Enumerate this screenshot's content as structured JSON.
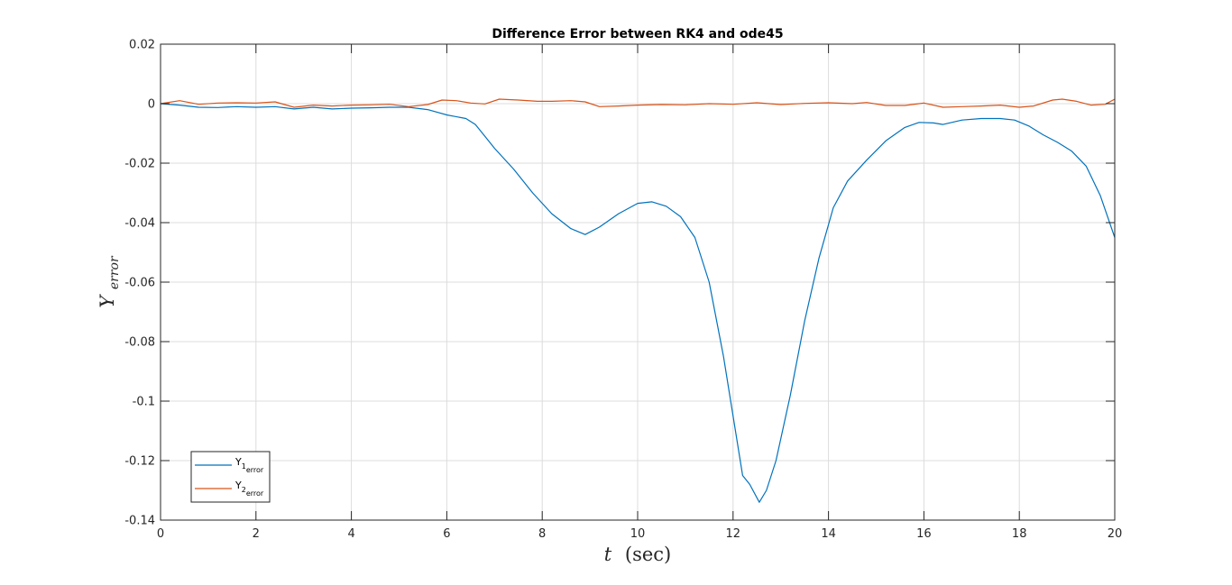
{
  "chart_data": {
    "type": "line",
    "title": "Difference Error between RK4 and ode45",
    "xlabel_var": "t",
    "xlabel_unit": "(sec)",
    "ylabel_base": "Y",
    "ylabel_sub": "error",
    "xlim": [
      0,
      20
    ],
    "ylim": [
      -0.14,
      0.02
    ],
    "xticks": [
      0,
      2,
      4,
      6,
      8,
      10,
      12,
      14,
      16,
      18,
      20
    ],
    "yticks": [
      0.02,
      0,
      -0.02,
      -0.04,
      -0.06,
      -0.08,
      -0.1,
      -0.12,
      -0.14
    ],
    "xtick_labels": [
      "0",
      "2",
      "4",
      "6",
      "8",
      "10",
      "12",
      "14",
      "16",
      "18",
      "20"
    ],
    "ytick_labels": [
      "0.02",
      "0",
      "-0.02",
      "-0.04",
      "-0.06",
      "-0.08",
      "-0.1",
      "-0.12",
      "-0.14"
    ],
    "grid": true,
    "legend_position": "bottom-left",
    "series": [
      {
        "name": "Y1 error",
        "legend_base": "Y",
        "legend_index": "1",
        "legend_sub": "error",
        "color": "#0072BD",
        "x": [
          0,
          0.4,
          0.8,
          1.2,
          1.6,
          2.0,
          2.4,
          2.8,
          3.2,
          3.6,
          4.0,
          4.4,
          4.8,
          5.2,
          5.6,
          6.0,
          6.4,
          6.6,
          6.8,
          7.0,
          7.4,
          7.8,
          8.2,
          8.6,
          8.9,
          9.2,
          9.6,
          10.0,
          10.3,
          10.6,
          10.9,
          11.2,
          11.5,
          11.8,
          12.0,
          12.2,
          12.35,
          12.55,
          12.7,
          12.9,
          13.2,
          13.5,
          13.8,
          14.1,
          14.4,
          14.8,
          15.2,
          15.6,
          15.9,
          16.2,
          16.4,
          16.8,
          17.2,
          17.6,
          17.9,
          18.2,
          18.5,
          18.8,
          19.1,
          19.4,
          19.7,
          20.0
        ],
        "y": [
          0,
          -0.0005,
          -0.0012,
          -0.0013,
          -0.001,
          -0.0012,
          -0.001,
          -0.0018,
          -0.0012,
          -0.0018,
          -0.0015,
          -0.0014,
          -0.0012,
          -0.0012,
          -0.002,
          -0.0038,
          -0.005,
          -0.007,
          -0.011,
          -0.015,
          -0.022,
          -0.03,
          -0.037,
          -0.042,
          -0.044,
          -0.0415,
          -0.037,
          -0.0335,
          -0.033,
          -0.0345,
          -0.038,
          -0.045,
          -0.06,
          -0.085,
          -0.105,
          -0.125,
          -0.128,
          -0.134,
          -0.13,
          -0.12,
          -0.098,
          -0.073,
          -0.052,
          -0.035,
          -0.026,
          -0.019,
          -0.0125,
          -0.008,
          -0.0063,
          -0.0065,
          -0.007,
          -0.0055,
          -0.005,
          -0.005,
          -0.0055,
          -0.0075,
          -0.0105,
          -0.013,
          -0.016,
          -0.021,
          -0.031,
          -0.045
        ]
      },
      {
        "name": "Y2 error",
        "legend_base": "Y",
        "legend_index": "2",
        "legend_sub": "error",
        "color": "#D95319",
        "x": [
          0,
          0.4,
          0.8,
          1.2,
          1.6,
          2.0,
          2.4,
          2.8,
          3.2,
          3.6,
          4.0,
          4.4,
          4.8,
          5.2,
          5.6,
          5.9,
          6.2,
          6.5,
          6.8,
          7.1,
          7.5,
          7.9,
          8.2,
          8.6,
          8.9,
          9.2,
          9.6,
          10.0,
          10.5,
          11.0,
          11.5,
          12.0,
          12.5,
          13.0,
          13.5,
          14.0,
          14.5,
          14.8,
          15.2,
          15.6,
          16.0,
          16.4,
          16.8,
          17.2,
          17.6,
          18.0,
          18.3,
          18.7,
          18.9,
          19.2,
          19.5,
          19.8,
          20.0
        ],
        "y": [
          0,
          0.001,
          -0.0002,
          0.0002,
          0.0003,
          0.0002,
          0.0006,
          -0.0012,
          -0.0005,
          -0.0008,
          -0.0005,
          -0.0004,
          -0.0002,
          -0.001,
          -0.0003,
          0.0012,
          0.001,
          0.0002,
          -0.0001,
          0.0015,
          0.0012,
          0.0008,
          0.0008,
          0.001,
          0.0006,
          -0.001,
          -0.0008,
          -0.0005,
          -0.0003,
          -0.0004,
          0,
          -0.0002,
          0.0003,
          -0.0003,
          0.0001,
          0.0003,
          0,
          0.0004,
          -0.0006,
          -0.0006,
          0.0002,
          -0.0012,
          -0.001,
          -0.0008,
          -0.0005,
          -0.0012,
          -0.0008,
          0.0012,
          0.0015,
          0.0008,
          -0.0005,
          -0.0002,
          0.0015
        ]
      }
    ]
  }
}
